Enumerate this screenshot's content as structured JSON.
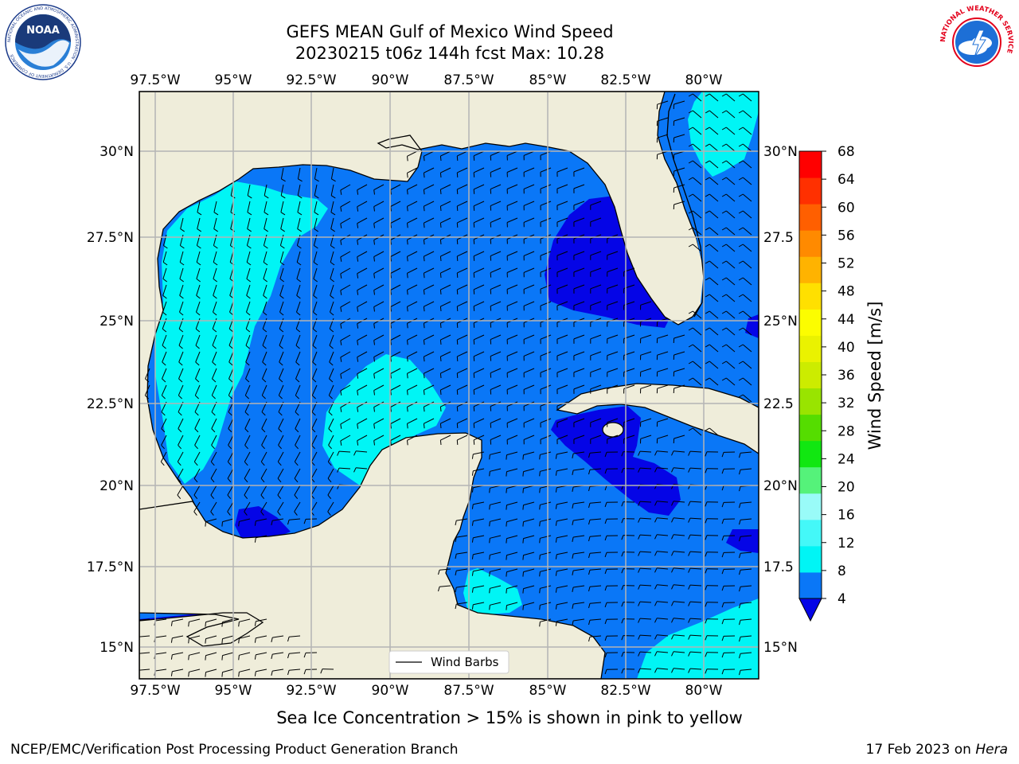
{
  "header": {
    "title_line1": "GEFS MEAN Gulf of Mexico Wind Speed",
    "title_line2": "20230215 t06z 144h fcst   Max: 10.28"
  },
  "logos": {
    "noaa_text": "NOAA",
    "noaa_ring": "NATIONAL OCEANIC AND ATMOSPHERIC ADMINISTRATION · U.S. DEPARTMENT OF COMMERCE",
    "nws_ring": "NATIONAL WEATHER SERVICE"
  },
  "map": {
    "lon_labels": [
      "97.5°W",
      "95°W",
      "92.5°W",
      "90°W",
      "87.5°W",
      "85°W",
      "82.5°W",
      "80°W"
    ],
    "lat_labels_left": [
      "30°N",
      "27.5°N",
      "25°N",
      "22.5°N",
      "20°N",
      "17.5°N",
      "15°N"
    ],
    "lat_labels_right": [
      "30°N",
      "27.5",
      "25°N",
      "22.5",
      "20°N",
      "17.5",
      "15°N"
    ],
    "legend_label": "Wind Barbs",
    "colors": {
      "land": "#efedda",
      "band_4_8": "#0a77f7",
      "band_lt_4": "#0505e6",
      "band_8_12": "#00f5f5"
    }
  },
  "colorbar": {
    "label": "Wind Speed [m/s]",
    "ticks": [
      "68",
      "64",
      "60",
      "56",
      "52",
      "48",
      "44",
      "40",
      "36",
      "32",
      "28",
      "24",
      "20",
      "16",
      "12",
      "8",
      "4"
    ],
    "colors": [
      "#0a77f7",
      "#00f5f5",
      "#44f8f8",
      "#99fbf8",
      "#55f27a",
      "#11e711",
      "#55dd00",
      "#99e400",
      "#ccec00",
      "#eaf200",
      "#fcfd00",
      "#ffe000",
      "#ffb300",
      "#ff8a00",
      "#ff5f00",
      "#ff3000",
      "#ff0000"
    ],
    "extend_color": "#0505e6"
  },
  "footer": {
    "subtitle": "Sea Ice Concentration > 15% is shown in pink to yellow",
    "credit": "NCEP/EMC/Verification Post Processing Product Generation Branch",
    "date": "17 Feb 2023 on ",
    "machine": "Hera"
  }
}
